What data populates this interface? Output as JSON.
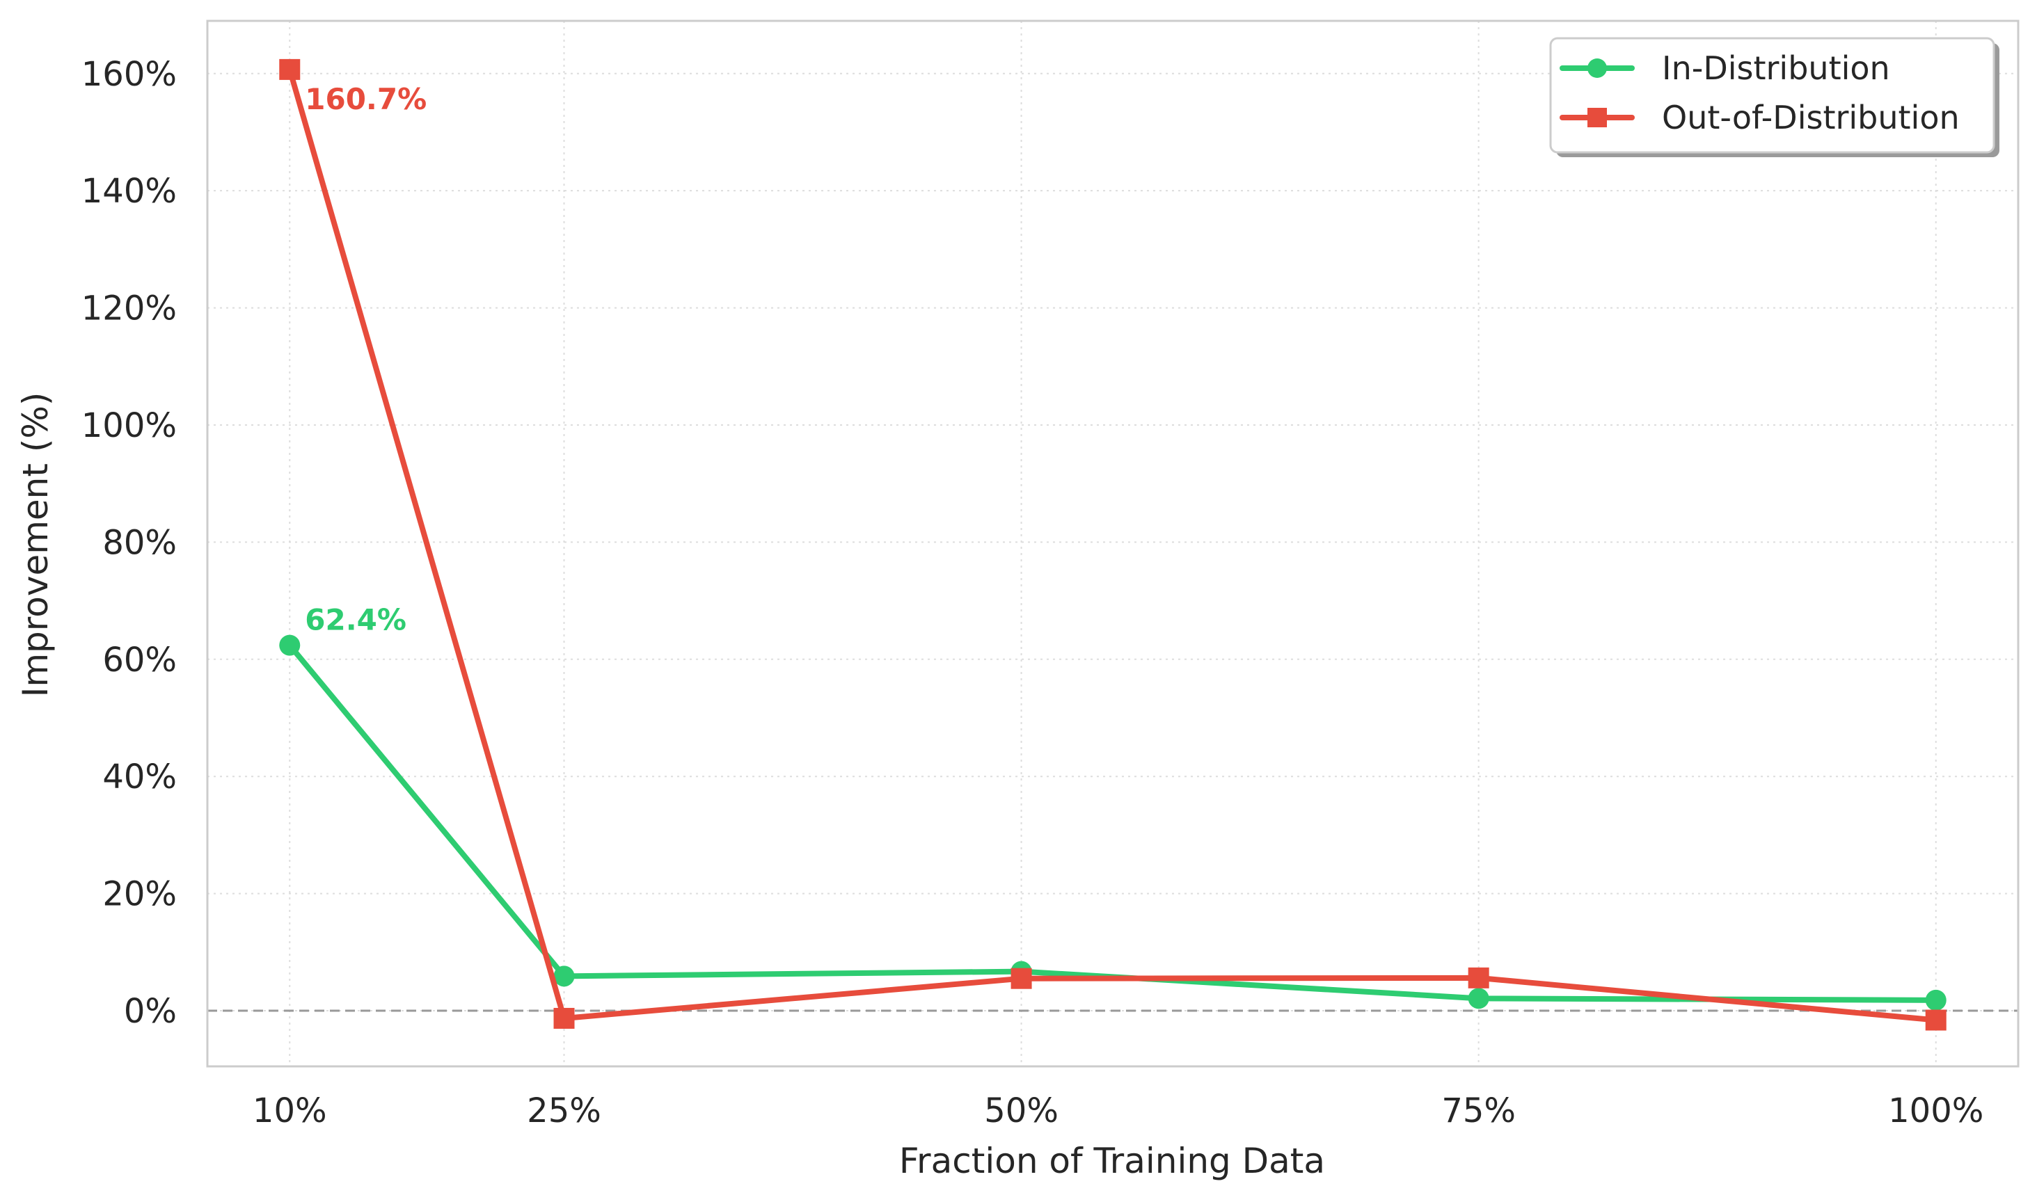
{
  "chart_data": {
    "type": "line",
    "x": [
      10,
      25,
      50,
      75,
      100
    ],
    "x_tick_labels": [
      "10%",
      "25%",
      "50%",
      "75%",
      "100%"
    ],
    "y_tick_labels": [
      "0%",
      "20%",
      "40%",
      "60%",
      "80%",
      "100%",
      "120%",
      "140%",
      "160%"
    ],
    "y_ticks": [
      0,
      20,
      40,
      60,
      80,
      100,
      120,
      140,
      160
    ],
    "xlim": [
      5.5,
      104.5
    ],
    "ylim": [
      -9.5,
      169
    ],
    "xlabel": "Fraction of Training Data",
    "ylabel": "Improvement (%)",
    "grid": true,
    "reference_line": {
      "y": 0,
      "style": "dashed",
      "color": "#999999"
    },
    "legend_position": "top-right",
    "series": [
      {
        "name": "In-Distribution",
        "marker": "circle",
        "color": "#2ecc71",
        "values": [
          62.4,
          5.9,
          6.7,
          2.1,
          1.8
        ],
        "annotation": {
          "index": 0,
          "text": "62.4%"
        }
      },
      {
        "name": "Out-of-Distribution",
        "marker": "square",
        "color": "#e74c3c",
        "values": [
          160.7,
          -1.3,
          5.5,
          5.6,
          -1.6
        ],
        "annotation": {
          "index": 0,
          "text": "160.7%"
        }
      }
    ]
  }
}
